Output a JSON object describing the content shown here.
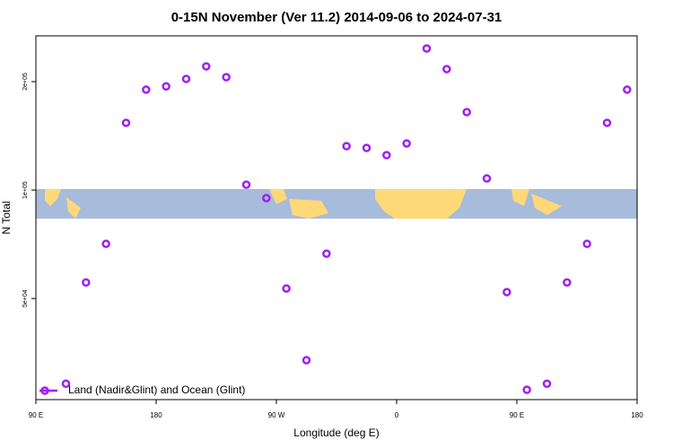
{
  "chart_data": {
    "type": "scatter",
    "title": "0-15N November (Ver 11.2)   2014-09-06 to 2024-07-31",
    "x_label": "Longitude (deg E)",
    "y_label": "N Total",
    "xlim": [
      90,
      540
    ],
    "xticks": [
      {
        "value": 90,
        "label": "90 E"
      },
      180,
      {
        "value": 270,
        "label": "90 W"
      },
      {
        "value": 360,
        "label": "0"
      },
      {
        "value": 450,
        "label": "90 E"
      },
      {
        "value": 540,
        "label": "180"
      }
    ],
    "ylim": [
      26200,
      268000
    ],
    "ylog": true,
    "yticks": [
      {
        "value": 50000,
        "label": "5e+04"
      },
      {
        "value": 100000,
        "label": "1e+05"
      },
      {
        "value": 200000,
        "label": "2e+05"
      }
    ],
    "legend": "bottomleft",
    "series": [
      {
        "name": "Land (Nadir&Glint) and Ocean (Glint)",
        "color": "#a020f0",
        "x": [
          112.5,
          127.5,
          142.5,
          157.5,
          172.5,
          187.5,
          202.5,
          217.5,
          232.5,
          247.5,
          262.5,
          277.5,
          292.5,
          307.5,
          322.5,
          337.5,
          352.5,
          367.5,
          382.5,
          397.5,
          412.5,
          427.5,
          442.5,
          457.5,
          472.5,
          487.5,
          502.5,
          517.5,
          532.5
        ],
        "values": [
          29000,
          55400,
          70900,
          153700,
          190000,
          194000,
          203500,
          220500,
          205800,
          103500,
          95000,
          53300,
          33700,
          66600,
          132400,
          130900,
          125000,
          134700,
          247200,
          216700,
          164600,
          107700,
          52100,
          27900,
          29000,
          55400,
          70900,
          153700,
          190000
        ]
      }
    ]
  }
}
